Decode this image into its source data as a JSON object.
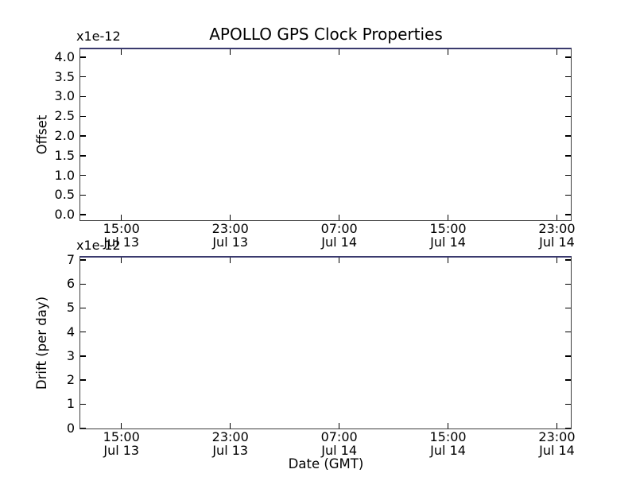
{
  "figure_title": "APOLLO GPS Clock Properties",
  "colors": {
    "background": "#ffffff",
    "text": "#000000",
    "spine": "#3d3d3d",
    "top_spine": "#3a3a6e",
    "tick": "#000000"
  },
  "chart_data": [
    {
      "type": "line",
      "title": "APOLLO GPS Clock Properties",
      "ylabel": "Offset",
      "y_scale_label": "x1e-12",
      "ylim": [
        -0.13,
        4.2
      ],
      "grid": false,
      "legend": false,
      "yticks": [
        {
          "v": 0.0,
          "label": "0.0"
        },
        {
          "v": 0.5,
          "label": "0.5"
        },
        {
          "v": 1.0,
          "label": "1.0"
        },
        {
          "v": 1.5,
          "label": "1.5"
        },
        {
          "v": 2.0,
          "label": "2.0"
        },
        {
          "v": 2.5,
          "label": "2.5"
        },
        {
          "v": 3.0,
          "label": "3.0"
        },
        {
          "v": 3.5,
          "label": "3.5"
        },
        {
          "v": 4.0,
          "label": "4.0"
        }
      ],
      "xticks": [
        {
          "pos": 0.0833,
          "time": "15:00",
          "date": "Jul 13"
        },
        {
          "pos": 0.3056,
          "time": "23:00",
          "date": "Jul 13"
        },
        {
          "pos": 0.5278,
          "time": "07:00",
          "date": "Jul 14"
        },
        {
          "pos": 0.75,
          "time": "15:00",
          "date": "Jul 14"
        },
        {
          "pos": 0.9722,
          "time": "23:00",
          "date": "Jul 14"
        }
      ],
      "series": []
    },
    {
      "type": "line",
      "ylabel": "Drift (per day)",
      "xlabel": "Date (GMT)",
      "y_scale_label": "x1e-12",
      "ylim": [
        0,
        7.1
      ],
      "grid": false,
      "legend": false,
      "yticks": [
        {
          "v": 0,
          "label": "0"
        },
        {
          "v": 1,
          "label": "1"
        },
        {
          "v": 2,
          "label": "2"
        },
        {
          "v": 3,
          "label": "3"
        },
        {
          "v": 4,
          "label": "4"
        },
        {
          "v": 5,
          "label": "5"
        },
        {
          "v": 6,
          "label": "6"
        },
        {
          "v": 7,
          "label": "7"
        }
      ],
      "xticks": [
        {
          "pos": 0.0833,
          "time": "15:00",
          "date": "Jul 13"
        },
        {
          "pos": 0.3056,
          "time": "23:00",
          "date": "Jul 13"
        },
        {
          "pos": 0.5278,
          "time": "07:00",
          "date": "Jul 14"
        },
        {
          "pos": 0.75,
          "time": "15:00",
          "date": "Jul 14"
        },
        {
          "pos": 0.9722,
          "time": "23:00",
          "date": "Jul 14"
        }
      ],
      "series": []
    }
  ]
}
